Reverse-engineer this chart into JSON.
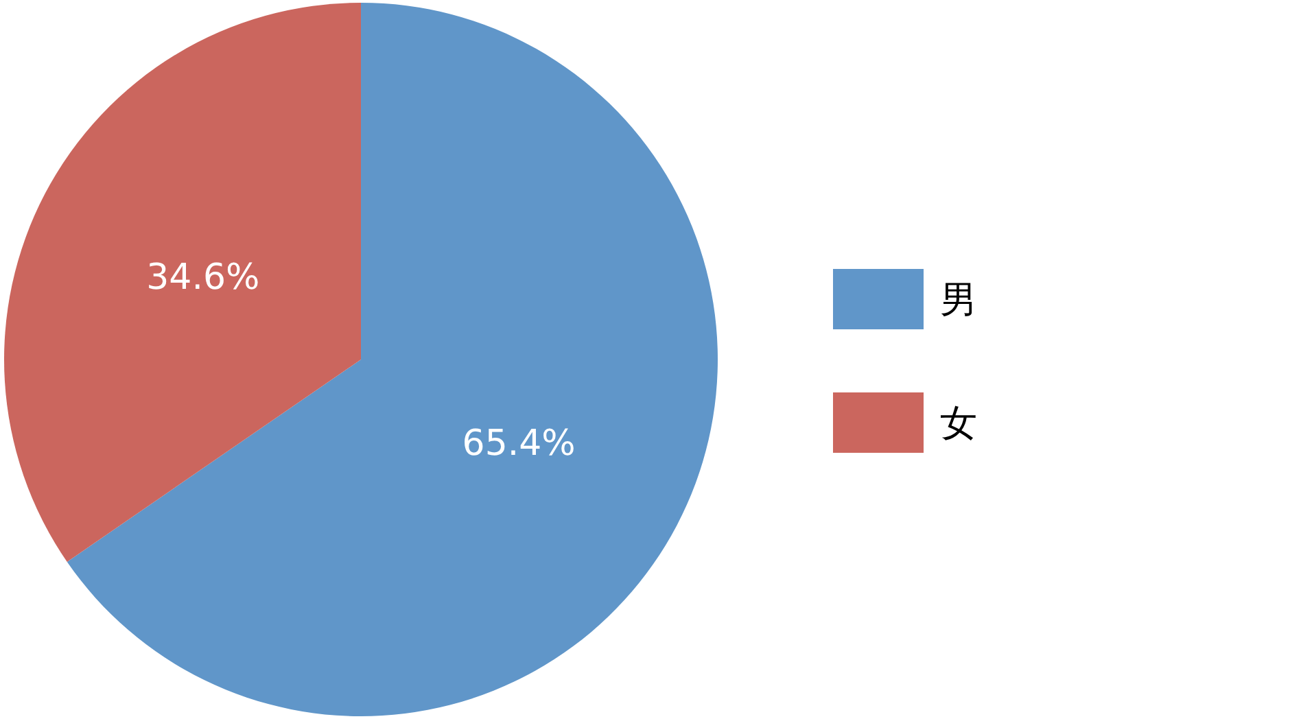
{
  "chart_data": {
    "type": "pie",
    "categories": [
      "男",
      "女"
    ],
    "values": [
      65.4,
      34.6
    ],
    "colors": [
      "#6096c9",
      "#cb665e"
    ],
    "value_labels": [
      "65.4%",
      "34.6%"
    ],
    "legend": "right"
  }
}
